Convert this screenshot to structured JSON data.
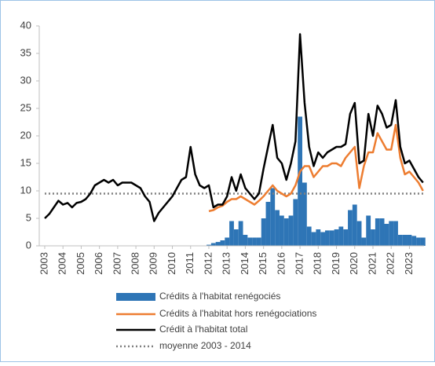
{
  "chart_data": {
    "type": "line",
    "x": [
      2003,
      2003.25,
      2003.5,
      2003.75,
      2004,
      2004.25,
      2004.5,
      2004.75,
      2005,
      2005.25,
      2005.5,
      2005.75,
      2006,
      2006.25,
      2006.5,
      2006.75,
      2007,
      2007.25,
      2007.5,
      2007.75,
      2008,
      2008.25,
      2008.5,
      2008.75,
      2009,
      2009.25,
      2009.5,
      2009.75,
      2010,
      2010.25,
      2010.5,
      2010.75,
      2011,
      2011.25,
      2011.5,
      2011.75,
      2012,
      2012.25,
      2012.5,
      2012.75,
      2013,
      2013.25,
      2013.5,
      2013.75,
      2014,
      2014.25,
      2014.5,
      2014.75,
      2015,
      2015.25,
      2015.5,
      2015.75,
      2016,
      2016.25,
      2016.5,
      2016.75,
      2017,
      2017.25,
      2017.5,
      2017.75,
      2018,
      2018.25,
      2018.5,
      2018.75,
      2019,
      2019.25,
      2019.5,
      2019.75,
      2020,
      2020.25,
      2020.5,
      2020.75,
      2021,
      2021.25,
      2021.5,
      2021.75,
      2022,
      2022.25,
      2022.5,
      2022.75,
      2023,
      2023.25,
      2023.5,
      2023.75
    ],
    "series": [
      {
        "name": "Crédits à l'habitat renégociés",
        "color": "#2e75b6",
        "kind": "bar",
        "values": [
          null,
          null,
          null,
          null,
          null,
          null,
          null,
          null,
          null,
          null,
          null,
          null,
          null,
          null,
          null,
          null,
          null,
          null,
          null,
          null,
          null,
          null,
          null,
          null,
          null,
          null,
          null,
          null,
          null,
          null,
          null,
          null,
          null,
          null,
          null,
          null,
          0.2,
          0.5,
          0.7,
          1,
          1.5,
          4.5,
          3,
          4.5,
          2,
          1.5,
          1.5,
          1.5,
          5,
          8,
          10.5,
          6.5,
          5.5,
          5,
          5.5,
          8.5,
          23.5,
          11.5,
          3.5,
          2.5,
          3,
          2.5,
          2.8,
          2.8,
          3,
          3.5,
          3,
          6.5,
          7.5,
          4.5,
          1.5,
          5.5,
          3,
          5,
          5,
          4,
          4.5,
          4.5,
          2,
          2,
          2,
          1.8,
          1.5,
          1.5
        ]
      },
      {
        "name": "Crédits à l'habitat hors renégociations",
        "color": "#ed7d31",
        "kind": "line",
        "values": [
          null,
          null,
          null,
          null,
          null,
          null,
          null,
          null,
          null,
          null,
          null,
          null,
          null,
          null,
          null,
          null,
          null,
          null,
          null,
          null,
          null,
          null,
          null,
          null,
          null,
          null,
          null,
          null,
          null,
          null,
          null,
          null,
          null,
          null,
          null,
          null,
          6.3,
          6.5,
          7,
          7.3,
          8,
          8.5,
          8.5,
          9,
          8.5,
          8,
          7.5,
          8.2,
          9,
          10,
          11,
          10,
          9.5,
          9,
          9.5,
          11,
          13.5,
          14.5,
          14.5,
          12.5,
          13.5,
          14.5,
          14.5,
          15,
          15,
          14.5,
          16,
          17,
          18,
          10.5,
          14.5,
          17,
          17,
          20.5,
          19,
          17.5,
          17.5,
          22,
          16,
          13,
          13.5,
          12.5,
          11.5,
          10
        ]
      },
      {
        "name": "Crédit à l'habitat total",
        "color": "#000000",
        "kind": "line",
        "values": [
          5,
          5.8,
          7,
          8.2,
          7.5,
          7.8,
          7,
          7.8,
          8,
          8.5,
          9.5,
          11,
          11.5,
          12,
          11.5,
          12,
          11,
          11.5,
          11.5,
          11.5,
          11,
          10.5,
          9,
          8,
          4.5,
          6,
          7,
          8,
          9,
          10.5,
          12,
          12.5,
          18,
          13,
          11,
          10.5,
          11,
          7,
          7.5,
          7.5,
          9,
          12.5,
          10,
          13,
          10.5,
          9.5,
          8.5,
          9.5,
          14,
          18,
          22,
          16,
          15,
          12,
          15,
          19,
          38.5,
          26,
          18,
          14.5,
          17,
          16,
          17,
          17.5,
          18,
          18,
          18.5,
          24,
          26,
          15,
          15.5,
          24,
          20,
          25.5,
          24,
          21.5,
          22,
          26.5,
          18,
          15,
          15.5,
          14,
          12.5,
          11.5
        ]
      }
    ],
    "reference_line": {
      "name": "moyenne 2003 - 2014",
      "value": 9.5,
      "color": "#808080"
    },
    "xlim": [
      2002.7,
      2023.8
    ],
    "xticks": [
      2003,
      2004,
      2005,
      2006,
      2007,
      2008,
      2009,
      2010,
      2011,
      2012,
      2013,
      2014,
      2015,
      2016,
      2017,
      2018,
      2019,
      2020,
      2021,
      2022,
      2023
    ],
    "ylim": [
      0,
      40
    ],
    "yticks": [
      0,
      5,
      10,
      15,
      20,
      25,
      30,
      35,
      40
    ],
    "grid": false
  }
}
